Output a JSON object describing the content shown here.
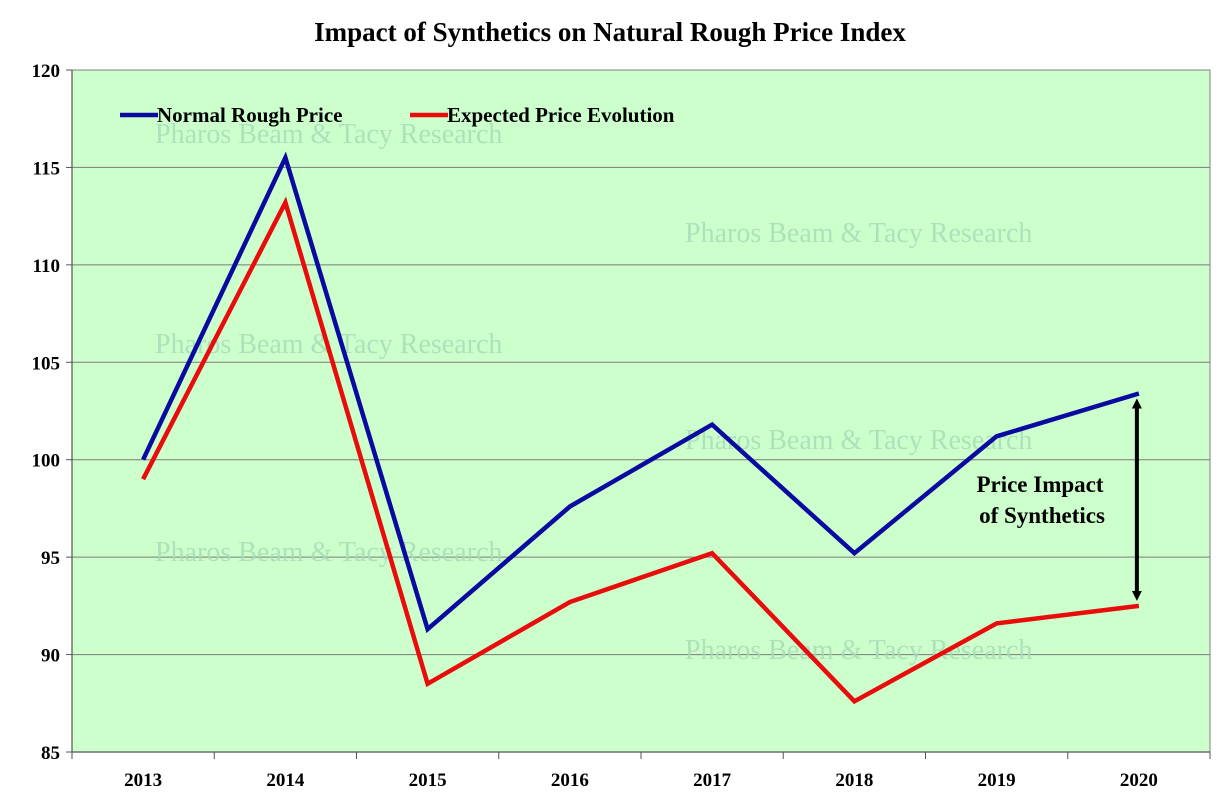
{
  "chart_data": {
    "type": "line",
    "title": "Impact of Synthetics on Natural Rough Price Index",
    "xlabel": "",
    "ylabel": "",
    "categories": [
      "2013",
      "2014",
      "2015",
      "2016",
      "2017",
      "2018",
      "2019",
      "2020"
    ],
    "ylim": [
      85,
      120
    ],
    "yticks": [
      85,
      90,
      95,
      100,
      105,
      110,
      115,
      120
    ],
    "grid": true,
    "legend_position": "top-left",
    "plot_background": "#ccffcc",
    "series": [
      {
        "name": "Normal Rough Price",
        "color": "#0a0aa0",
        "values": [
          100.0,
          115.5,
          91.3,
          97.6,
          101.8,
          95.2,
          101.2,
          103.4
        ]
      },
      {
        "name": "Expected Price Evolution",
        "color": "#e80c0c",
        "values": [
          99.0,
          113.2,
          88.5,
          92.7,
          95.2,
          87.6,
          91.6,
          92.5
        ]
      }
    ],
    "annotation": {
      "lines": [
        "Price Impact",
        "of Synthetics"
      ]
    },
    "watermark": "Pharos Beam & Tacy Research"
  }
}
